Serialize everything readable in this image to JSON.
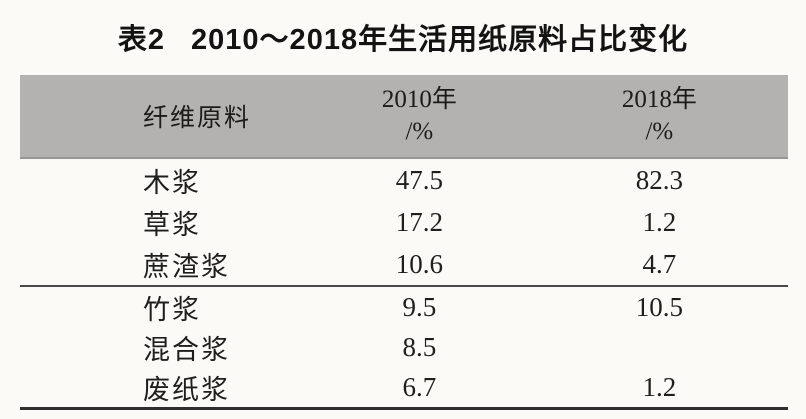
{
  "title": {
    "prefix": "表2",
    "text": "2010～2018年生活用纸原料占比变化"
  },
  "table": {
    "header": {
      "material": "纤维原料",
      "y2010": {
        "line1": "2010年",
        "line2": "/%"
      },
      "y2018": {
        "line1": "2018年",
        "line2": "/%"
      }
    },
    "groups": [
      {
        "rows": [
          {
            "material": "木浆",
            "y2010": "47.5",
            "y2018": "82.3"
          },
          {
            "material": "草浆",
            "y2010": "17.2",
            "y2018": "1.2"
          },
          {
            "material": "蔗渣浆",
            "y2010": "10.6",
            "y2018": "4.7"
          }
        ]
      },
      {
        "rows": [
          {
            "material": "竹浆",
            "y2010": "9.5",
            "y2018": "10.5"
          },
          {
            "material": "混合浆",
            "y2010": "8.5",
            "y2018": ""
          },
          {
            "material": "废纸浆",
            "y2010": "6.7",
            "y2018": "1.2"
          }
        ]
      }
    ]
  },
  "colors": {
    "page_bg": "#fbfaf7",
    "header_bg": "#b3b2b0",
    "mid_rule": "#4a4a4a",
    "bottom_rule": "#2e2e2e",
    "text": "#1e1e1e"
  }
}
